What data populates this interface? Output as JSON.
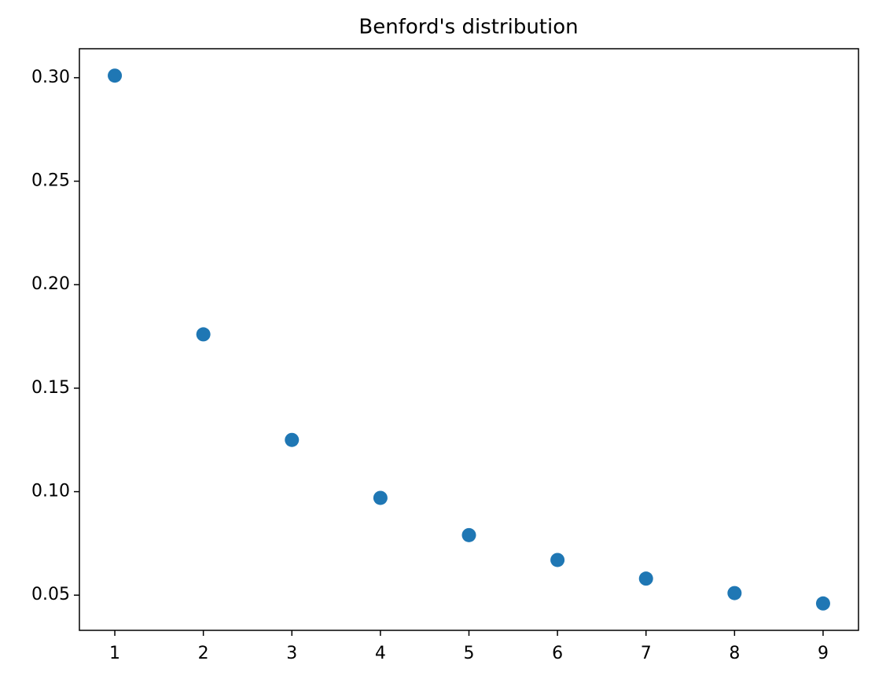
{
  "chart_data": {
    "type": "scatter",
    "title": "Benford's distribution",
    "x": [
      1,
      2,
      3,
      4,
      5,
      6,
      7,
      8,
      9
    ],
    "series": [
      {
        "name": null,
        "color": "#1f77b4",
        "values": [
          0.301,
          0.176,
          0.125,
          0.097,
          0.079,
          0.067,
          0.058,
          0.051,
          0.046
        ]
      }
    ],
    "xlim": [
      0.6,
      9.4
    ],
    "xticks": [
      1,
      2,
      3,
      4,
      5,
      6,
      7,
      8,
      9
    ],
    "ylim": [
      0.033,
      0.314
    ],
    "yticks": [
      0.05,
      {
        "value": 0.1,
        "label": "0.10"
      },
      0.15,
      {
        "value": 0.2,
        "label": "0.20"
      },
      0.25,
      {
        "value": 0.3,
        "label": "0.30"
      }
    ],
    "grid": false
  }
}
